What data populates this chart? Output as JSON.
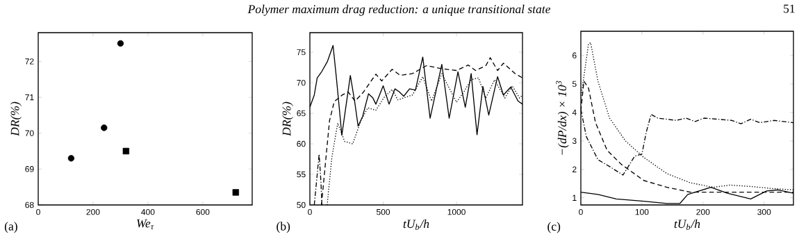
{
  "chart_data": [
    {
      "type": "scatter",
      "xlabel": "We$_{τ}$",
      "ylabel": "DR(%)",
      "annotations": [
        "(a)"
      ],
      "xlim": [
        0,
        780
      ],
      "ylim": [
        68,
        72.8
      ],
      "xticks": [
        0,
        200,
        400,
        600
      ],
      "yticks": [
        68,
        69,
        70,
        71,
        72
      ],
      "series": [
        {
          "color": "#000000",
          "marker": "circle",
          "x": [
            120,
            240,
            300
          ],
          "values": [
            69.3,
            70.15,
            72.5
          ]
        },
        {
          "color": "#000000",
          "marker": "square",
          "x": [
            320,
            720
          ],
          "values": [
            69.5,
            68.35
          ]
        }
      ]
    },
    {
      "type": "line",
      "title": "Polymer maximum drag reduction: a unique transitional state",
      "xlabel": "tU$_{b}$/h",
      "ylabel": "DR(%)",
      "annotations": [
        "(b)"
      ],
      "xlim": [
        0,
        1450
      ],
      "ylim": [
        50,
        78.2
      ],
      "xticks": [
        0,
        500,
        1000
      ],
      "yticks": [
        50,
        55,
        60,
        65,
        70,
        75
      ],
      "series": [
        {
          "color": "#000000",
          "line_style": "solid",
          "x": [
            0,
            30,
            50,
            80,
            120,
            158,
            180,
            200,
            218,
            245,
            276,
            305,
            329,
            360,
            400,
            430,
            450,
            500,
            540,
            580,
            610,
            640,
            680,
            720,
            770,
            820,
            900,
            950,
            1010,
            1060,
            1100,
            1140,
            1180,
            1220,
            1280,
            1320,
            1370,
            1420,
            1450
          ],
          "values": [
            66,
            68,
            70.8,
            71.8,
            73.5,
            76.1,
            71,
            66,
            61.4,
            66,
            71.2,
            67,
            62.9,
            64.5,
            68.2,
            67.5,
            66.5,
            69.5,
            66.5,
            69,
            68.5,
            67.8,
            69,
            68.8,
            74.2,
            64.2,
            73,
            64.2,
            71.8,
            66,
            71.5,
            61.5,
            69.4,
            64.7,
            71,
            68,
            69.3,
            67,
            66.5
          ]
        },
        {
          "color": "#000000",
          "line_style": "dashed",
          "x": [
            79,
            110,
            134,
            166,
            221,
            261,
            308,
            363,
            450,
            490,
            561,
            616,
            700,
            795,
            900,
            1000,
            1080,
            1130,
            1200,
            1230,
            1280,
            1320,
            1400,
            1450
          ],
          "values": [
            50,
            57.8,
            63.8,
            66.9,
            68,
            68.5,
            67,
            68.4,
            71.4,
            70.3,
            72.2,
            71.2,
            71.5,
            72.8,
            72.3,
            72,
            72.9,
            72,
            72.8,
            74.1,
            72,
            73.2,
            71.5,
            70.8
          ]
        },
        {
          "color": "#000000",
          "line_style": "dotted",
          "x": [
            118,
            150,
            190,
            237,
            292,
            348,
            395,
            450,
            506,
            561,
            600,
            700,
            770,
            830,
            900,
            1000,
            1050,
            1100,
            1150,
            1200,
            1260,
            1330,
            1380,
            1430,
            1450
          ],
          "values": [
            50,
            57.8,
            63.4,
            60.4,
            60,
            63.8,
            65.9,
            65.5,
            67.6,
            68.9,
            67.2,
            68,
            71,
            67,
            71.5,
            66.8,
            68.5,
            70.5,
            70.8,
            67.5,
            70.5,
            67.5,
            69.5,
            67.5,
            68
          ]
        },
        {
          "color": "#000000",
          "line_style": "dashdot",
          "x": [
            30,
            50,
            63,
            75,
            82
          ],
          "values": [
            50,
            55,
            58.3,
            54,
            50
          ]
        }
      ]
    },
    {
      "type": "line",
      "xlabel": "tU$_{b}$/h",
      "ylabel": "−(dP/dx) × 10$^{3}$",
      "annotations": [
        "(c)",
        "51"
      ],
      "xlim": [
        0,
        348
      ],
      "ylim": [
        0.75,
        6.85
      ],
      "xticks": [
        0,
        100,
        200,
        300
      ],
      "yticks": [
        1,
        2,
        3,
        4,
        5,
        6
      ],
      "series": [
        {
          "color": "#000000",
          "line_style": "solid",
          "x": [
            0,
            28,
            58,
            103,
            141,
            162,
            175,
            187,
            213,
            240,
            278,
            304,
            323,
            348
          ],
          "values": [
            1.2,
            1.12,
            0.96,
            0.88,
            0.8,
            0.8,
            1.12,
            1.2,
            1.37,
            1.16,
            0.96,
            1.24,
            1.28,
            1.16
          ]
        },
        {
          "color": "#000000",
          "line_style": "dashed",
          "x": [
            0,
            5,
            12.5,
            24,
            43,
            66,
            103,
            141,
            179,
            348
          ],
          "values": [
            4.05,
            5.1,
            4.86,
            3.64,
            2.67,
            2.18,
            1.61,
            1.37,
            1.2,
            1.2
          ]
        },
        {
          "color": "#000000",
          "line_style": "dotted",
          "x": [
            0,
            12.5,
            16,
            28,
            47,
            73,
            103,
            141,
            179,
            217,
            244,
            278,
            312,
            348
          ],
          "values": [
            4.5,
            6.4,
            6.45,
            5.1,
            3.8,
            3.0,
            2.42,
            1.85,
            1.53,
            1.37,
            1.45,
            1.4,
            1.33,
            1.28
          ]
        },
        {
          "color": "#000000",
          "line_style": "dashdot",
          "x": [
            0,
            9,
            28,
            47,
            69,
            88,
            100,
            107,
            115,
            126,
            156,
            172,
            187,
            202,
            247,
            262,
            278,
            293,
            316,
            348
          ],
          "values": [
            4.1,
            3.15,
            2.34,
            2.1,
            1.8,
            2.46,
            2.54,
            3.3,
            3.93,
            3.8,
            3.72,
            3.8,
            3.68,
            3.8,
            3.72,
            3.6,
            3.76,
            3.64,
            3.72,
            3.64
          ]
        }
      ]
    }
  ]
}
